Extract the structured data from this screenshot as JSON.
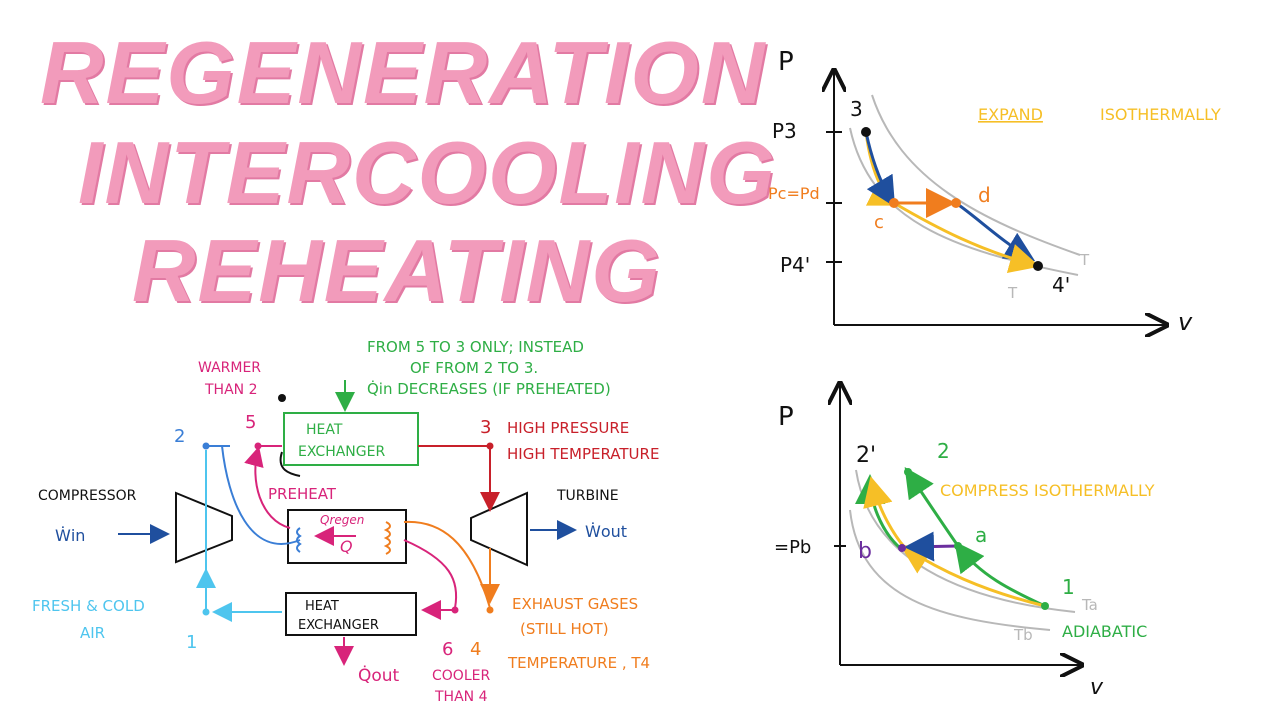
{
  "title": {
    "line1": "REGENERATION",
    "line2": "INTERCOOLING",
    "line3": "REHEATING"
  },
  "colors": {
    "title_pink": "#f29bbb",
    "blue": "#1f4f9e",
    "light_blue": "#4ec5ee",
    "green": "#2eae45",
    "magenta": "#d8247a",
    "red": "#c8202a",
    "orange": "#f07d1e",
    "yellow": "#f6bf26",
    "purple": "#6b2e9e",
    "gray": "#b8b8b8"
  },
  "cycle_schematic": {
    "compressor_label": "COMPRESSOR",
    "win_label": "Ẇin",
    "turbine_label": "TURBINE",
    "wout_label": "Ẇout",
    "hx_top_label_1": "HEAT",
    "hx_top_label_2": "EXCHANGER",
    "hx_bottom_label_1": "HEAT",
    "hx_bottom_label_2": "EXCHANGER",
    "qregen_label": "Qregen",
    "q_label": "Q",
    "preheat_label": "PREHEAT",
    "qout_label": "Q̇out",
    "fresh_air_1": "FRESH & COLD",
    "fresh_air_2": "AIR",
    "warmer_1": "WARMER",
    "warmer_2": "THAN 2",
    "state_1": "1",
    "state_2": "2",
    "state_3": "3",
    "state_4": "4",
    "state_5": "5",
    "state_6": "6",
    "note_line1": "FROM 5 TO 3 ONLY; INSTEAD",
    "note_line2": "OF FROM 2 TO 3.",
    "note_line3": "Q̇in DECREASES (IF PREHEATED)",
    "high_pressure": "HIGH PRESSURE",
    "high_temperature": "HIGH TEMPERATURE",
    "exhaust_1": "EXHAUST GASES",
    "exhaust_2": "(STILL HOT)",
    "temperature_t4": "TEMPERATURE , T4",
    "cooler_1": "COOLER",
    "cooler_2": "THAN 4"
  },
  "pv_expansion": {
    "p_axis": "P",
    "v_axis": "v",
    "p3_label": "P3",
    "pc_pd_label": "Pc=Pd",
    "p4_label": "P4'",
    "point_3": "3",
    "point_c": "c",
    "point_d": "d",
    "point_4": "4'",
    "t_label_outer": "T",
    "t_label_inner": "T",
    "annotation_1": "EXPAND",
    "annotation_2": "ISOTHERMALLY"
  },
  "pv_compression": {
    "p_axis": "P",
    "v_axis": "v",
    "pb_label": "=Pb",
    "point_2prime": "2'",
    "point_2": "2",
    "point_a": "a",
    "point_b": "b",
    "point_1": "1",
    "ta_label": "Ta",
    "tb_label": "Tb",
    "annotation": "COMPRESS ISOTHERMALLY",
    "adiabatic_label": "ADIABATIC"
  }
}
